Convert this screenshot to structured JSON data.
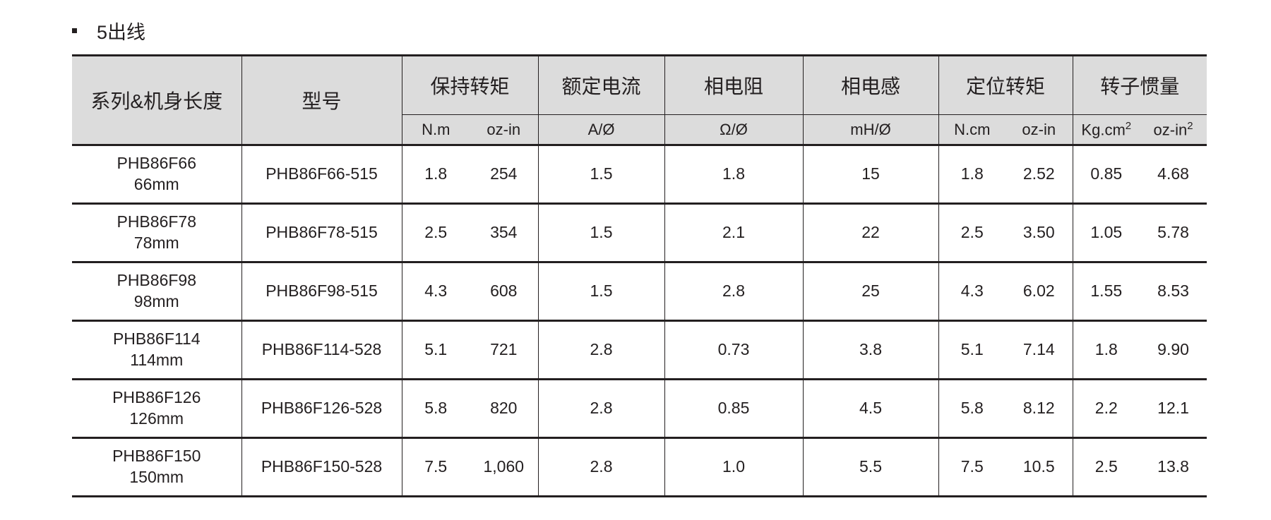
{
  "title": "5出线",
  "headers": {
    "series_length": "系列&机身长度",
    "model": "型号",
    "holding_torque": "保持转矩",
    "rated_current": "额定电流",
    "phase_resistance": "相电阻",
    "phase_inductance": "相电感",
    "detent_torque": "定位转矩",
    "rotor_inertia": "转子惯量"
  },
  "units": {
    "holding_torque_nm": "N.m",
    "holding_torque_ozin": "oz-in",
    "rated_current": "A/Ø",
    "phase_resistance": "Ω/Ø",
    "phase_inductance": "mH/Ø",
    "detent_torque_ncm": "N.cm",
    "detent_torque_ozin": "oz-in",
    "rotor_inertia_kgcm": "Kg.cm",
    "rotor_inertia_ozin": "oz-in",
    "squared": "2"
  },
  "rows": [
    {
      "series": "PHB86F66",
      "length": "66mm",
      "model": "PHB86F66-515",
      "ht_nm": "1.8",
      "ht_oz": "254",
      "current": "1.5",
      "resistance": "1.8",
      "inductance": "15",
      "dt_ncm": "1.8",
      "dt_oz": "2.52",
      "ri_kg": "0.85",
      "ri_oz": "4.68"
    },
    {
      "series": "PHB86F78",
      "length": "78mm",
      "model": "PHB86F78-515",
      "ht_nm": "2.5",
      "ht_oz": "354",
      "current": "1.5",
      "resistance": "2.1",
      "inductance": "22",
      "dt_ncm": "2.5",
      "dt_oz": "3.50",
      "ri_kg": "1.05",
      "ri_oz": "5.78"
    },
    {
      "series": "PHB86F98",
      "length": "98mm",
      "model": "PHB86F98-515",
      "ht_nm": "4.3",
      "ht_oz": "608",
      "current": "1.5",
      "resistance": "2.8",
      "inductance": "25",
      "dt_ncm": "4.3",
      "dt_oz": "6.02",
      "ri_kg": "1.55",
      "ri_oz": "8.53"
    },
    {
      "series": "PHB86F114",
      "length": "114mm",
      "model": "PHB86F114-528",
      "ht_nm": "5.1",
      "ht_oz": "721",
      "current": "2.8",
      "resistance": "0.73",
      "inductance": "3.8",
      "dt_ncm": "5.1",
      "dt_oz": "7.14",
      "ri_kg": "1.8",
      "ri_oz": "9.90"
    },
    {
      "series": "PHB86F126",
      "length": "126mm",
      "model": "PHB86F126-528",
      "ht_nm": "5.8",
      "ht_oz": "820",
      "current": "2.8",
      "resistance": "0.85",
      "inductance": "4.5",
      "dt_ncm": "5.8",
      "dt_oz": "8.12",
      "ri_kg": "2.2",
      "ri_oz": "12.1"
    },
    {
      "series": "PHB86F150",
      "length": "150mm",
      "model": "PHB86F150-528",
      "ht_nm": "7.5",
      "ht_oz": "1,060",
      "current": "2.8",
      "resistance": "1.0",
      "inductance": "5.5",
      "dt_ncm": "7.5",
      "dt_oz": "10.5",
      "ri_kg": "2.5",
      "ri_oz": "13.8"
    }
  ]
}
